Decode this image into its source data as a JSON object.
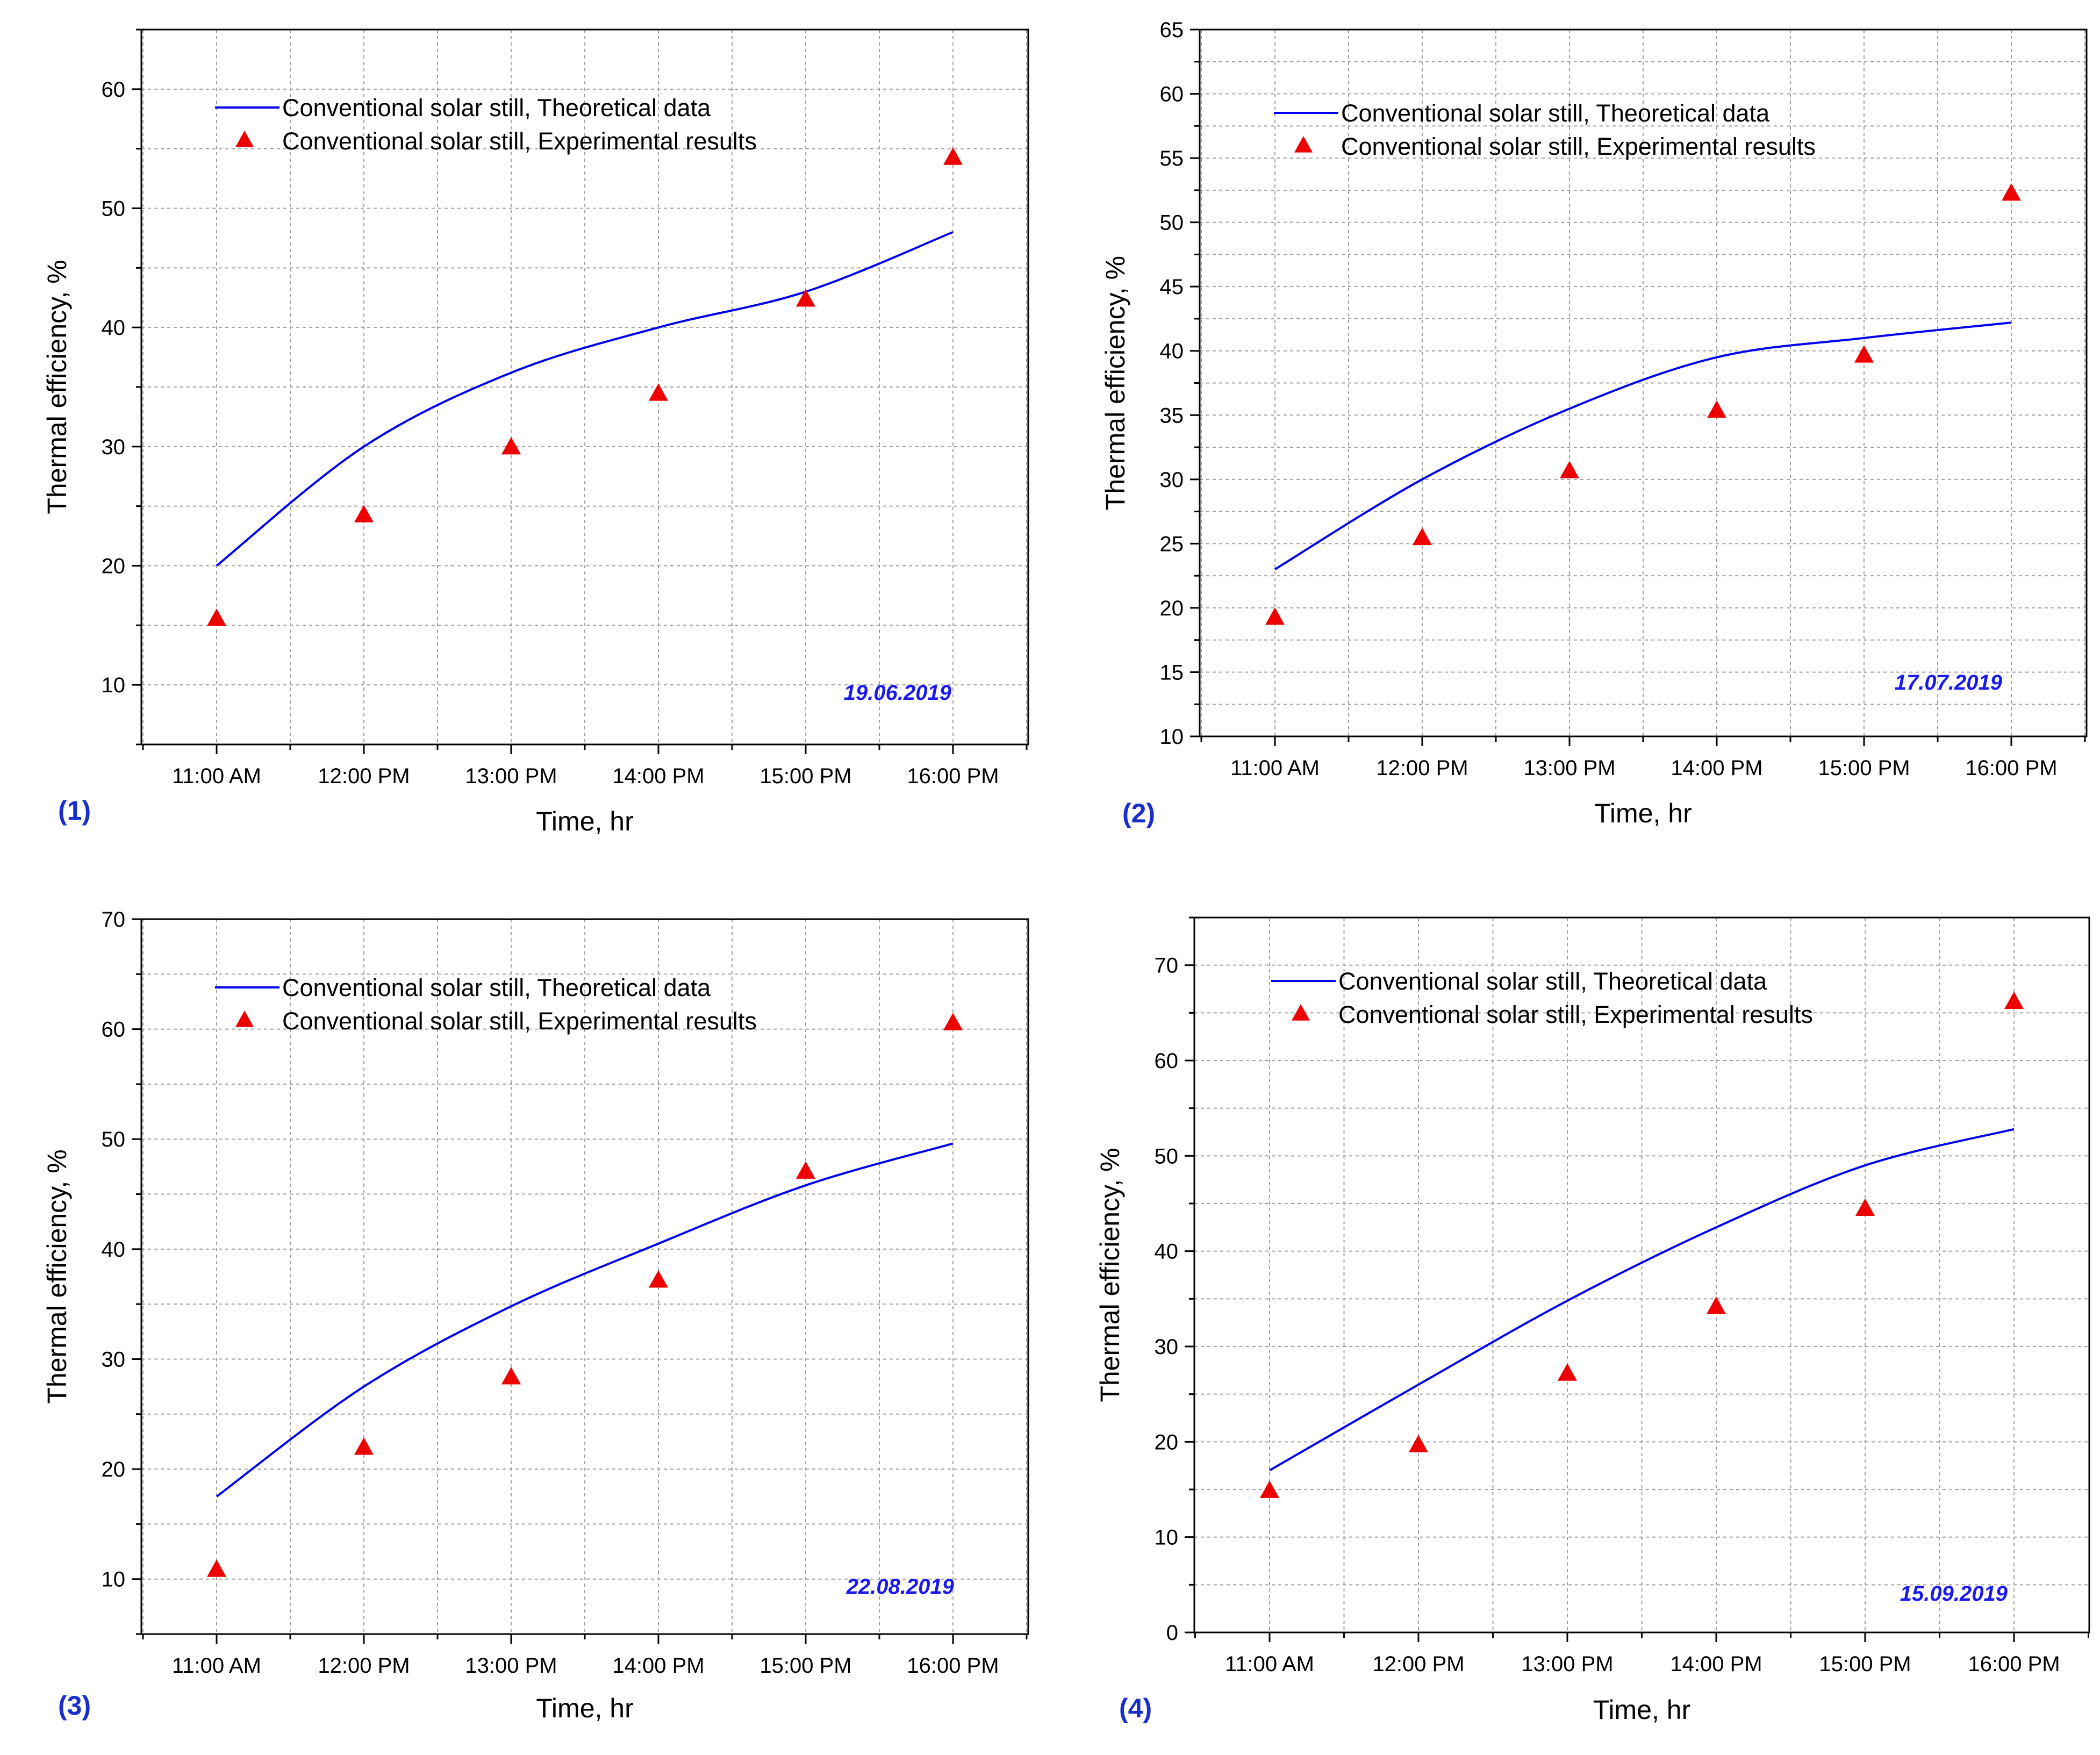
{
  "colors": {
    "theory_line": "#0000ee",
    "experiment_marker": "#ee0000",
    "date_text": "#1a1aee",
    "panel_label": "#1a2ecc",
    "grid": "#a0a0a0"
  },
  "chart_data": [
    {
      "type": "line+scatter",
      "panel_label": "(1)",
      "date": "19.06.2019",
      "xlabel": "Time, hr",
      "ylabel": "Thermal efficiency, %",
      "categories": [
        "11:00 AM",
        "12:00 PM",
        "13:00 PM",
        "14:00 PM",
        "15:00 PM",
        "16:00 PM"
      ],
      "ylim": [
        5,
        65
      ],
      "yticks": [
        10,
        20,
        30,
        40,
        50,
        60
      ],
      "grid": true,
      "legend": [
        "Conventional solar still, Theoretical data",
        "Conventional solar still, Experimental results"
      ],
      "series": [
        {
          "name": "Conventional solar still, Theoretical data",
          "kind": "line",
          "values": [
            20,
            30,
            36.2,
            40,
            43,
            48
          ]
        },
        {
          "name": "Conventional solar still, Experimental results",
          "kind": "scatter",
          "values": [
            15.5,
            24.2,
            29.9,
            34.4,
            42.3,
            54.2
          ]
        }
      ]
    },
    {
      "type": "line+scatter",
      "panel_label": "(2)",
      "date": "17.07.2019",
      "xlabel": "Time, hr",
      "ylabel": "Thermal efficiency, %",
      "categories": [
        "11:00 AM",
        "12:00 PM",
        "13:00 PM",
        "14:00 PM",
        "15:00 PM",
        "16:00 PM"
      ],
      "ylim": [
        10,
        65
      ],
      "yticks": [
        10,
        15,
        20,
        25,
        30,
        35,
        40,
        45,
        50,
        55,
        60,
        65
      ],
      "grid": true,
      "legend": [
        "Conventional solar still, Theoretical data",
        "Conventional solar still, Experimental results"
      ],
      "series": [
        {
          "name": "Conventional solar still, Theoretical data",
          "kind": "line",
          "values": [
            23,
            30,
            35.5,
            39.5,
            41,
            42.2
          ]
        },
        {
          "name": "Conventional solar still, Experimental results",
          "kind": "scatter",
          "values": [
            19.2,
            25.4,
            30.6,
            35.3,
            39.6,
            52.2
          ]
        }
      ]
    },
    {
      "type": "line+scatter",
      "panel_label": "(3)",
      "date": "22.08.2019",
      "xlabel": "Time, hr",
      "ylabel": "Thermal efficiency, %",
      "categories": [
        "11:00 AM",
        "12:00 PM",
        "13:00 PM",
        "14:00 PM",
        "15:00 PM",
        "16:00 PM"
      ],
      "ylim": [
        5,
        70
      ],
      "yticks": [
        10,
        20,
        30,
        40,
        50,
        60,
        70
      ],
      "grid": true,
      "legend": [
        "Conventional solar still, Theoretical data",
        "Conventional solar still, Experimental results"
      ],
      "series": [
        {
          "name": "Conventional solar still, Theoretical data",
          "kind": "line",
          "values": [
            17.5,
            27.5,
            34.8,
            40.5,
            45.8,
            49.6
          ]
        },
        {
          "name": "Conventional solar still, Experimental results",
          "kind": "scatter",
          "values": [
            10.8,
            21.9,
            28.3,
            37.1,
            47,
            60.5
          ]
        }
      ]
    },
    {
      "type": "line+scatter",
      "panel_label": "(4)",
      "date": "15.09.2019",
      "xlabel": "Time, hr",
      "ylabel": "Thermal efficiency, %",
      "categories": [
        "11:00 AM",
        "12:00 PM",
        "13:00 PM",
        "14:00 PM",
        "15:00 PM",
        "16:00 PM"
      ],
      "ylim": [
        0,
        75
      ],
      "yticks": [
        0,
        10,
        20,
        30,
        40,
        50,
        60,
        70
      ],
      "grid": true,
      "legend": [
        "Conventional solar still, Theoretical data",
        "Conventional solar still, Experimental results"
      ],
      "series": [
        {
          "name": "Conventional solar still, Theoretical data",
          "kind": "line",
          "values": [
            17,
            26,
            34.8,
            42.5,
            49,
            52.8
          ]
        },
        {
          "name": "Conventional solar still, Experimental results",
          "kind": "scatter",
          "values": [
            14.8,
            19.6,
            27.1,
            34.1,
            44.4,
            66.1
          ]
        }
      ]
    }
  ]
}
